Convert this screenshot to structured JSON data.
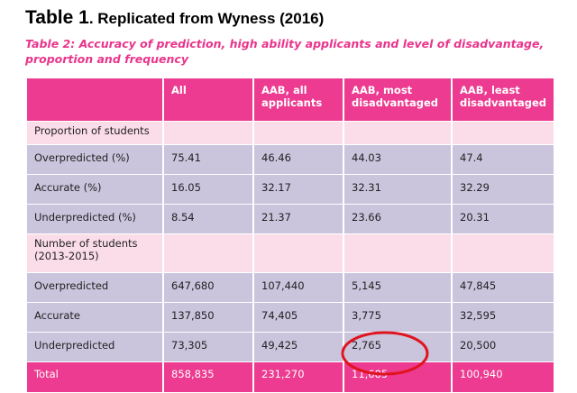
{
  "header": {
    "title_label": "Table 1",
    "title_text": ". Replicated from Wyness (2016)"
  },
  "table": {
    "caption": "Table 2: Accuracy of prediction, high ability applicants and level of disadvantage, proportion and frequency",
    "columns": [
      "All",
      "AAB, all applicants",
      "AAB, most disadvantaged",
      "AAB, least disadvantaged"
    ],
    "rows": [
      {
        "label": "Proportion of students"
      },
      {
        "label": "Overpredicted (%)",
        "values": [
          "75.41",
          "46.46",
          "44.03",
          "47.4"
        ]
      },
      {
        "label": "Accurate (%)",
        "values": [
          "16.05",
          "32.17",
          "32.31",
          "32.29"
        ]
      },
      {
        "label": "Underpredicted (%)",
        "values": [
          "8.54",
          "21.37",
          "23.66",
          "20.31"
        ]
      },
      {
        "label": "Number of students (2013-2015)"
      },
      {
        "label": "Overpredicted",
        "values": [
          "647,680",
          "107,440",
          "5,145",
          "47,845"
        ]
      },
      {
        "label": "Accurate",
        "values": [
          "137,850",
          "74,405",
          "3,775",
          "32,595"
        ]
      },
      {
        "label": "Underpredicted",
        "values": [
          "73,305",
          "49,425",
          "2,765",
          "20,500"
        ]
      },
      {
        "label": "Total",
        "values": [
          "858,835",
          "231,270",
          "11,685",
          "100,940"
        ]
      }
    ]
  }
}
